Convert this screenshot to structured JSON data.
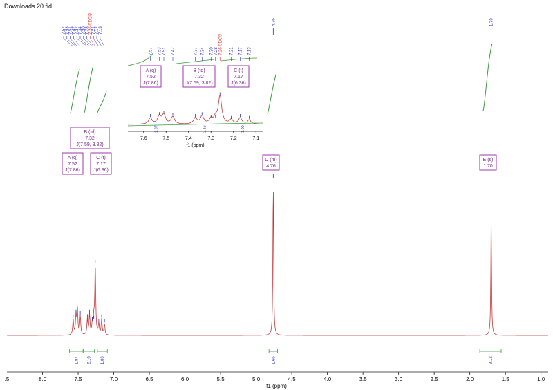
{
  "window": {
    "title": "Downloads.20.fid"
  },
  "chart_data": {
    "type": "line",
    "title": "Downloads.20.fid",
    "xlabel": "f1 (ppm)",
    "xlim": [
      8.5,
      0.9
    ],
    "x_ticks": [
      "8.0",
      "7.5",
      "7.0",
      "6.5",
      "6.0",
      "5.5",
      "5.0",
      "4.5",
      "4.0",
      "3.5",
      "3.0",
      "2.5",
      "2.0",
      "1.5",
      "1.0"
    ],
    "x_tick_values": [
      8.0,
      7.5,
      7.0,
      6.5,
      6.0,
      5.5,
      5.0,
      4.5,
      4.0,
      3.5,
      3.0,
      2.5,
      2.0,
      1.5,
      1.0
    ],
    "partial_tick": ".5",
    "peak_labels": [
      "7.57",
      "7.53",
      "7.51",
      "7.47",
      "7.37",
      "7.34",
      "7.30",
      "7.28",
      "7.26 CDCl3",
      "7.21",
      "7.17",
      "7.13",
      "4.76",
      "1.70"
    ],
    "peak_label_values": [
      7.57,
      7.53,
      7.51,
      7.47,
      7.37,
      7.34,
      7.3,
      7.28,
      7.26,
      7.21,
      7.17,
      7.13,
      4.76,
      1.7
    ],
    "solvent_label": "7.26 CDCl3",
    "peaks": [
      {
        "ppm": 7.57,
        "height": 0.1
      },
      {
        "ppm": 7.53,
        "height": 0.13
      },
      {
        "ppm": 7.51,
        "height": 0.15
      },
      {
        "ppm": 7.47,
        "height": 0.12
      },
      {
        "ppm": 7.37,
        "height": 0.1
      },
      {
        "ppm": 7.34,
        "height": 0.13
      },
      {
        "ppm": 7.3,
        "height": 0.08
      },
      {
        "ppm": 7.28,
        "height": 0.09
      },
      {
        "ppm": 7.26,
        "height": 0.45
      },
      {
        "ppm": 7.21,
        "height": 0.07
      },
      {
        "ppm": 7.17,
        "height": 0.1
      },
      {
        "ppm": 7.13,
        "height": 0.07
      },
      {
        "ppm": 4.76,
        "height": 1.0
      },
      {
        "ppm": 1.7,
        "height": 0.77
      }
    ],
    "multiplets": [
      {
        "id": "A",
        "lines": [
          "A (q)",
          "7.52",
          "J(7.86)"
        ]
      },
      {
        "id": "B",
        "lines": [
          "B (td)",
          "7.32",
          "J(7.59, 3.82)"
        ]
      },
      {
        "id": "C",
        "lines": [
          "C (t)",
          "7.17",
          "J(6.36)"
        ]
      },
      {
        "id": "D",
        "lines": [
          "D (m)",
          "4.76"
        ]
      },
      {
        "id": "E",
        "lines": [
          "E (s)",
          "1.70"
        ]
      }
    ],
    "integrals": [
      {
        "from": 7.62,
        "to": 7.43,
        "label": "1.87"
      },
      {
        "from": 7.43,
        "to": 7.27,
        "label": "2.16"
      },
      {
        "from": 7.23,
        "to": 7.09,
        "label": "1.00"
      },
      {
        "from": 4.82,
        "to": 4.7,
        "label": "1.66"
      },
      {
        "from": 1.86,
        "to": 1.56,
        "label": "3.12"
      }
    ],
    "inset": {
      "xlabel": "f1 (ppm)",
      "xlim": [
        7.67,
        7.07
      ],
      "x_ticks": [
        "7.6",
        "7.5",
        "7.4",
        "7.3",
        "7.2",
        "7.1"
      ],
      "x_tick_values": [
        7.6,
        7.5,
        7.4,
        7.3,
        7.2,
        7.1
      ],
      "peak_labels": [
        "7.57",
        "7.53",
        "7.51",
        "7.47",
        "7.37",
        "7.34",
        "7.30",
        "7.28",
        "7.26 CDCl3",
        "7.21",
        "7.17",
        "7.13"
      ],
      "integral_labels": [
        "1.87",
        "2.16",
        "1.00"
      ]
    },
    "colors": {
      "spectrum": "#c0393b",
      "integral": "#3a9a3a",
      "peak_label": "#2b2bd0",
      "solvent_label": "#e0302a",
      "multiplet": "#9b3aa8"
    },
    "grid": false,
    "legend": "none"
  }
}
